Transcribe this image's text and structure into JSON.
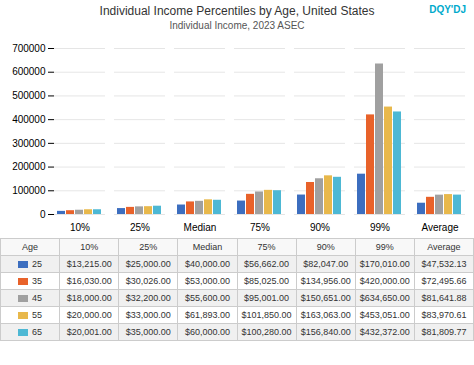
{
  "chart_data": {
    "type": "bar",
    "title": "Individual Income Percentiles by Age, United States",
    "subtitle": "Individual Income, 2023 ASEC",
    "annotations": [
      "DQY'DJ"
    ],
    "categories": [
      "10%",
      "25%",
      "Median",
      "75%",
      "90%",
      "99%",
      "Average"
    ],
    "series": [
      {
        "name": "25",
        "color": "#3c6ebf",
        "values": [
          13215,
          25000,
          40000,
          56662,
          82047,
          170010,
          47532.13
        ]
      },
      {
        "name": "35",
        "color": "#e8622a",
        "values": [
          16030,
          30026,
          53000,
          85025,
          134956,
          420000,
          72495.66
        ]
      },
      {
        "name": "45",
        "color": "#a0a0a0",
        "values": [
          18000,
          32200,
          55600,
          95001,
          150651,
          634650,
          81641.88
        ]
      },
      {
        "name": "55",
        "color": "#e8b84b",
        "values": [
          20000,
          33000,
          61893,
          101850,
          163063,
          453051,
          83970.61
        ]
      },
      {
        "name": "65",
        "color": "#4db8d4",
        "values": [
          20001,
          35000,
          60000,
          100280,
          156840,
          432372,
          81809.77
        ]
      }
    ],
    "ylim": [
      0,
      700000
    ],
    "yticks": [
      0,
      100000,
      200000,
      300000,
      400000,
      500000,
      600000,
      700000
    ],
    "grid": true,
    "table": {
      "header": [
        "Age",
        "10%",
        "25%",
        "Median",
        "75%",
        "90%",
        "99%",
        "Average"
      ],
      "rows": [
        [
          "25",
          "$13,215.00",
          "$25,000.00",
          "$40,000.00",
          "$56,662.00",
          "$82,047.00",
          "$170,010.00",
          "$47,532.13"
        ],
        [
          "35",
          "$16,030.00",
          "$30,026.00",
          "$53,000.00",
          "$85,025.00",
          "$134,956.00",
          "$420,000.00",
          "$72,495.66"
        ],
        [
          "45",
          "$18,000.00",
          "$32,200.00",
          "$55,600.00",
          "$95,001.00",
          "$150,651.00",
          "$634,650.00",
          "$81,641.88"
        ],
        [
          "55",
          "$20,000.00",
          "$33,000.00",
          "$61,893.00",
          "$101,850.00",
          "$163,063.00",
          "$453,051.00",
          "$83,970.61"
        ],
        [
          "65",
          "$20,001.00",
          "$35,000.00",
          "$60,000.00",
          "$100,280.00",
          "$156,840.00",
          "$432,372.00",
          "$81,809.77"
        ]
      ]
    }
  }
}
